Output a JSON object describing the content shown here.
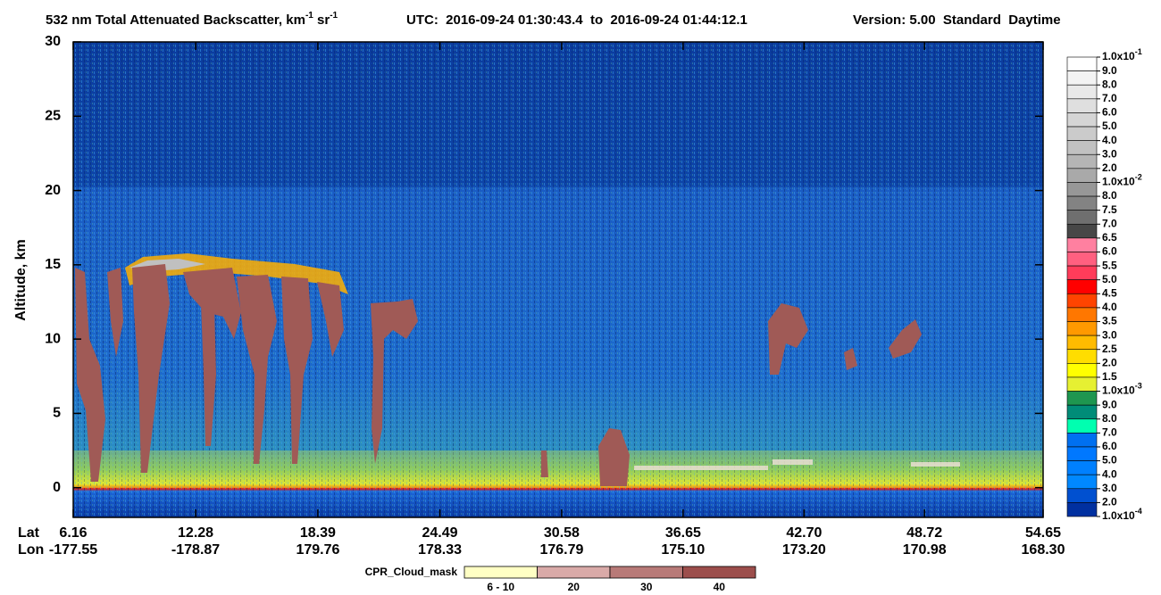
{
  "chart_data": {
    "type": "curtain",
    "title": {
      "main": "532 nm Total Attenuated Backscatter, km",
      "exp": "-1",
      "unit": " sr",
      "unit_exp": "-1"
    },
    "time_range": "UTC:  2016-09-24 01:30:43.4  to  2016-09-24 01:44:12.1",
    "version": "Version: 5.00  Standard  Daytime",
    "y_label": "Altitude, km",
    "ylim": [
      -2,
      30
    ],
    "yticks": [
      0,
      5,
      10,
      15,
      20,
      25,
      30
    ],
    "x_label": "Lat",
    "x2_label": "Lon",
    "xlim": [
      6.16,
      54.65
    ],
    "xticks": [
      6.16,
      12.28,
      18.39,
      24.49,
      30.58,
      36.65,
      {
        "value": 42.7,
        "label": "42.70"
      },
      48.72,
      54.65
    ],
    "lon_ticks": [
      -177.55,
      -178.87,
      179.76,
      178.33,
      176.79,
      {
        "value": 175.1,
        "label": "175.10"
      },
      {
        "value": 173.2,
        "label": "173.20"
      },
      170.98,
      {
        "value": 168.3,
        "label": "168.30"
      }
    ],
    "colorbar": {
      "labels": [
        {
          "base": "1.0x10",
          "exp": "-1"
        },
        "9.0",
        "8.0",
        "7.0",
        "6.0",
        "5.0",
        "4.0",
        "3.0",
        "2.0",
        {
          "base": "1.0x10",
          "exp": "-2"
        },
        "8.0",
        "7.5",
        "7.0",
        "6.5",
        "6.0",
        "5.5",
        "5.0",
        "4.5",
        "4.0",
        "3.5",
        "3.0",
        "2.5",
        "2.0",
        "1.5",
        {
          "base": "1.0x10",
          "exp": "-3"
        },
        "9.0",
        "8.0",
        "7.0",
        "6.0",
        "5.0",
        "4.0",
        "3.0",
        "2.0",
        {
          "base": "1.0x10",
          "exp": "-4"
        }
      ],
      "colors": [
        "#ffffff",
        "#f3f3f3",
        "#e9e9e9",
        "#dfdfdf",
        "#d5d5d5",
        "#cbcbcb",
        "#c1c1c1",
        "#b5b5b5",
        "#a9a9a9",
        "#979797",
        "#838383",
        "#6f6f6f",
        "#474747",
        "#ff80a0",
        "#ff6080",
        "#ff3c5a",
        "#ff0000",
        "#ff4400",
        "#ff7700",
        "#ff9900",
        "#ffbb00",
        "#ffdd00",
        "#ffff00",
        "#e6f032",
        "#1e9650",
        "#008c78",
        "#00ffb0",
        "#0070f0",
        "#0078ff",
        "#0080ff",
        "#0088ff",
        "#0050d0",
        "#0030a0"
      ]
    },
    "cpr_legend": {
      "title": "CPR_Cloud_mask",
      "labels": [
        "6 - 10",
        "20",
        "30",
        "40"
      ],
      "colors": [
        "#ffffc4",
        "#d9aaa8",
        "#b87a78",
        "#9c4e4c"
      ]
    }
  }
}
